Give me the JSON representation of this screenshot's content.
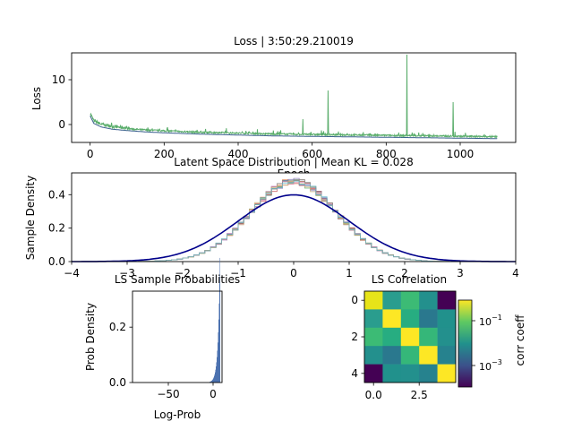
{
  "figure": {
    "colors": {
      "loss_main": "#5aad6b",
      "loss_blue": "#3b5f8f",
      "gauss_curve": "#00008b",
      "hist_bar": "#4c72b0",
      "hist_lines": [
        "#4c72b0",
        "#dd8452",
        "#55a868",
        "#c44e52",
        "#8172b3",
        "#937860",
        "#da8bc3",
        "#8c8c8c",
        "#ccb974",
        "#64b5cd"
      ]
    }
  },
  "chart_data": [
    {
      "type": "line",
      "title": "Loss | 3:50:29.210019",
      "xlabel": "Epoch",
      "ylabel": "Loss",
      "xlim": [
        -50,
        1150
      ],
      "ylim": [
        -4,
        16
      ],
      "xticks": [
        "0",
        "200",
        "400",
        "600",
        "800",
        "1000"
      ],
      "yticks": [
        "0",
        "10"
      ],
      "series": [
        {
          "x": [
            0,
            10,
            30,
            60,
            100,
            150,
            200,
            300,
            400,
            500,
            600,
            700,
            800,
            900,
            1000,
            1100
          ],
          "values": [
            2.2,
            0.5,
            -0.3,
            -0.8,
            -1.1,
            -1.4,
            -1.6,
            -1.9,
            -2.1,
            -2.3,
            -2.4,
            -2.5,
            -2.6,
            -2.7,
            -2.8,
            -2.9
          ]
        }
      ],
      "spikes": [
        {
          "x": 575,
          "y": 1.2
        },
        {
          "x": 643,
          "y": 7.6
        },
        {
          "x": 856,
          "y": 15.6
        },
        {
          "x": 981,
          "y": 5.0
        }
      ]
    },
    {
      "type": "line",
      "title": "Latent Space Distribution | Mean KL = 0.028",
      "xlabel": "",
      "ylabel": "Sample Density",
      "xlim": [
        -4,
        4
      ],
      "ylim": [
        0,
        0.53
      ],
      "xticks": [
        "−4",
        "−3",
        "−2",
        "−1",
        "0",
        "1",
        "2",
        "3",
        "4"
      ],
      "yticks": [
        "0.0",
        "0.2",
        "0.4"
      ],
      "reference": "standard normal density",
      "histogram_peak": 0.48
    },
    {
      "type": "bar",
      "title": "LS Sample Probabilities",
      "xlabel": "Log-Prob",
      "ylabel": "Prob Density",
      "xlim": [
        -90,
        10
      ],
      "ylim": [
        0,
        0.33
      ],
      "xticks": [
        "−50",
        "0"
      ],
      "yticks": [
        "0.0",
        "0.2"
      ],
      "peak_x": 7,
      "peak_y": 0.32
    },
    {
      "type": "heatmap",
      "title": "LS Correlation",
      "colorbar_label": "corr coeff",
      "colorbar_ticks": [
        "10",
        "10"
      ],
      "colorbar_exponents": [
        "−1",
        "−3"
      ],
      "xticks": [
        "0.0",
        "2.5"
      ],
      "yticks": [
        "0",
        "2",
        "4"
      ],
      "matrix_colors": [
        [
          "#e7e419",
          "#2a9d8e",
          "#3cbb75",
          "#23908d",
          "#440154"
        ],
        [
          "#2a9d8e",
          "#fde725",
          "#27ad81",
          "#2a788e",
          "#21918c"
        ],
        [
          "#3cbb75",
          "#27ad81",
          "#fde725",
          "#35b779",
          "#23908d"
        ],
        [
          "#23908d",
          "#2a788e",
          "#35b779",
          "#fde725",
          "#26828e"
        ],
        [
          "#440154",
          "#21918c",
          "#23908d",
          "#26828e",
          "#fde725"
        ]
      ]
    }
  ]
}
